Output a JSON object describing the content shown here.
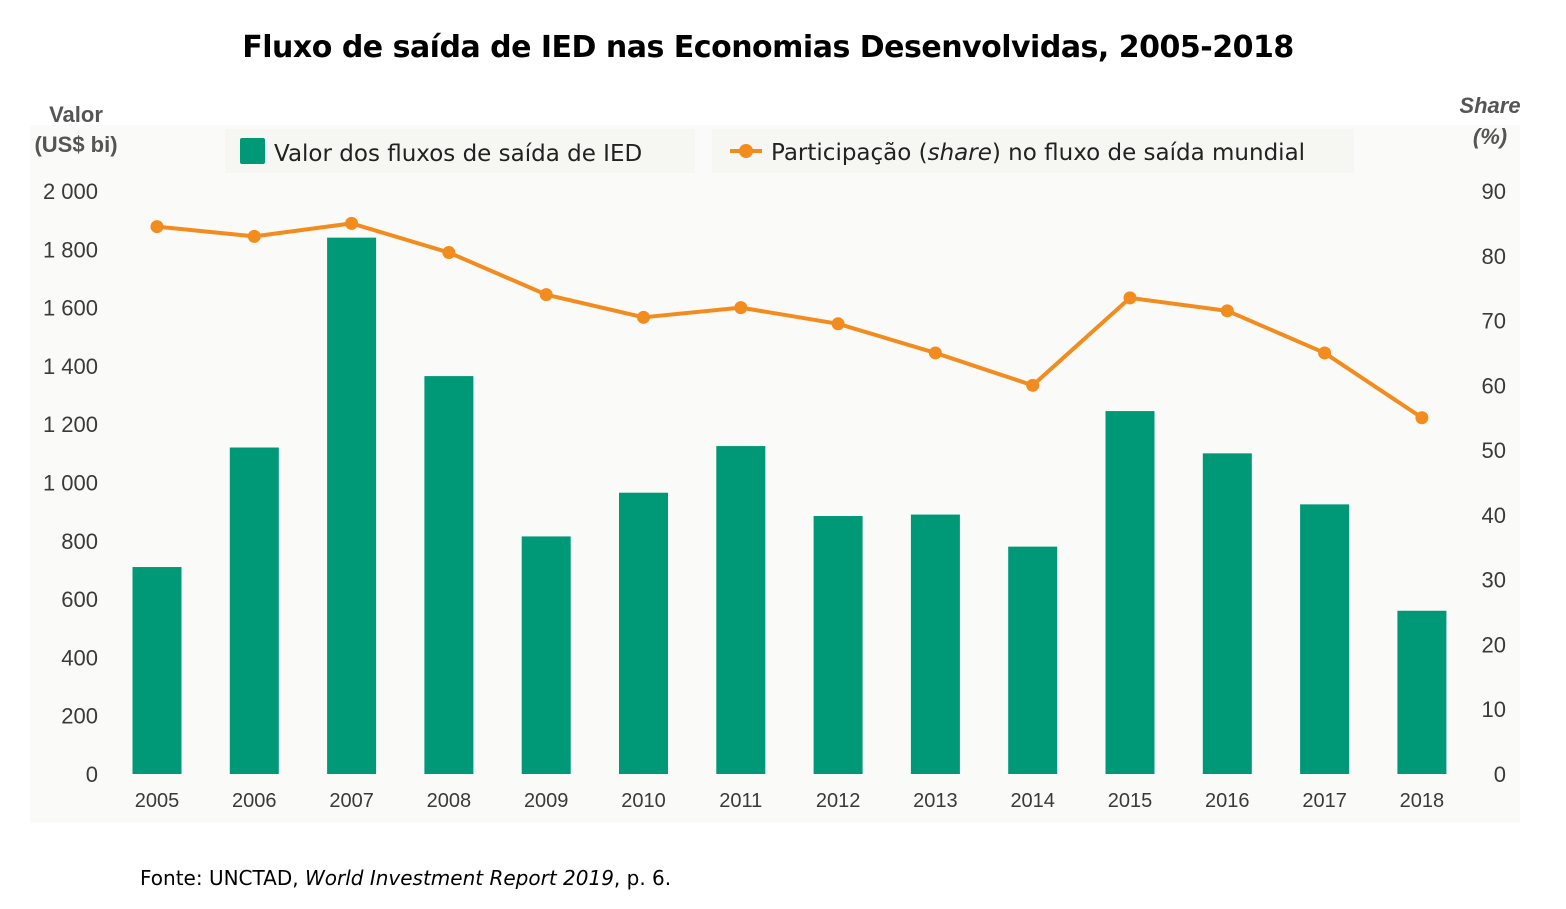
{
  "title": "Fluxo de saída de IED nas Economias Desenvolvidas, 2005-2018",
  "source": {
    "prefix": "Fonte: UNCTAD, ",
    "work": "World Investment Report 2019",
    "suffix": ", p. 6."
  },
  "colors": {
    "bar": "#009977",
    "line": "#f28c1e",
    "axis_text": "#3a3a3a",
    "plot_bg": "#fafaf8"
  },
  "chart_data": {
    "type": "bar",
    "title": "Fluxo de saída de IED nas Economias Desenvolvidas, 2005-2018",
    "categories": [
      "2005",
      "2006",
      "2007",
      "2008",
      "2009",
      "2010",
      "2011",
      "2012",
      "2013",
      "2014",
      "2015",
      "2016",
      "2017",
      "2018"
    ],
    "left_axis": {
      "label_line1": "Valor",
      "label_line2": "(US$ bi)",
      "ylim": [
        0,
        2000
      ],
      "ticks": [
        0,
        200,
        400,
        600,
        800,
        1000,
        1200,
        1400,
        1600,
        1800,
        2000
      ],
      "tick_labels": [
        "0",
        "200",
        "400",
        "600",
        "800",
        "1 000",
        "1 200",
        "1 400",
        "1 600",
        "1 800",
        "2 000"
      ]
    },
    "right_axis": {
      "label_line1": "Share",
      "label_line2": "(%)",
      "ylim": [
        0,
        90
      ],
      "ticks": [
        0,
        10,
        20,
        30,
        40,
        50,
        60,
        70,
        80,
        90
      ],
      "tick_labels": [
        "0",
        "10",
        "20",
        "30",
        "40",
        "50",
        "60",
        "70",
        "80",
        "90"
      ]
    },
    "series": [
      {
        "name": "Valor dos fluxos de saída de IED",
        "type": "bar",
        "axis": "left",
        "values": [
          710,
          1120,
          1840,
          1365,
          815,
          965,
          1125,
          885,
          890,
          780,
          1245,
          1100,
          925,
          560
        ]
      },
      {
        "name_parts": [
          "Participação (",
          "share",
          ") no fluxo de saída mundial"
        ],
        "type": "line",
        "axis": "right",
        "values": [
          84.5,
          83,
          85,
          80.5,
          74,
          70.5,
          72,
          69.5,
          65,
          60,
          73.5,
          71.5,
          65,
          55
        ]
      }
    ],
    "legend_position": "top",
    "grid": false
  }
}
